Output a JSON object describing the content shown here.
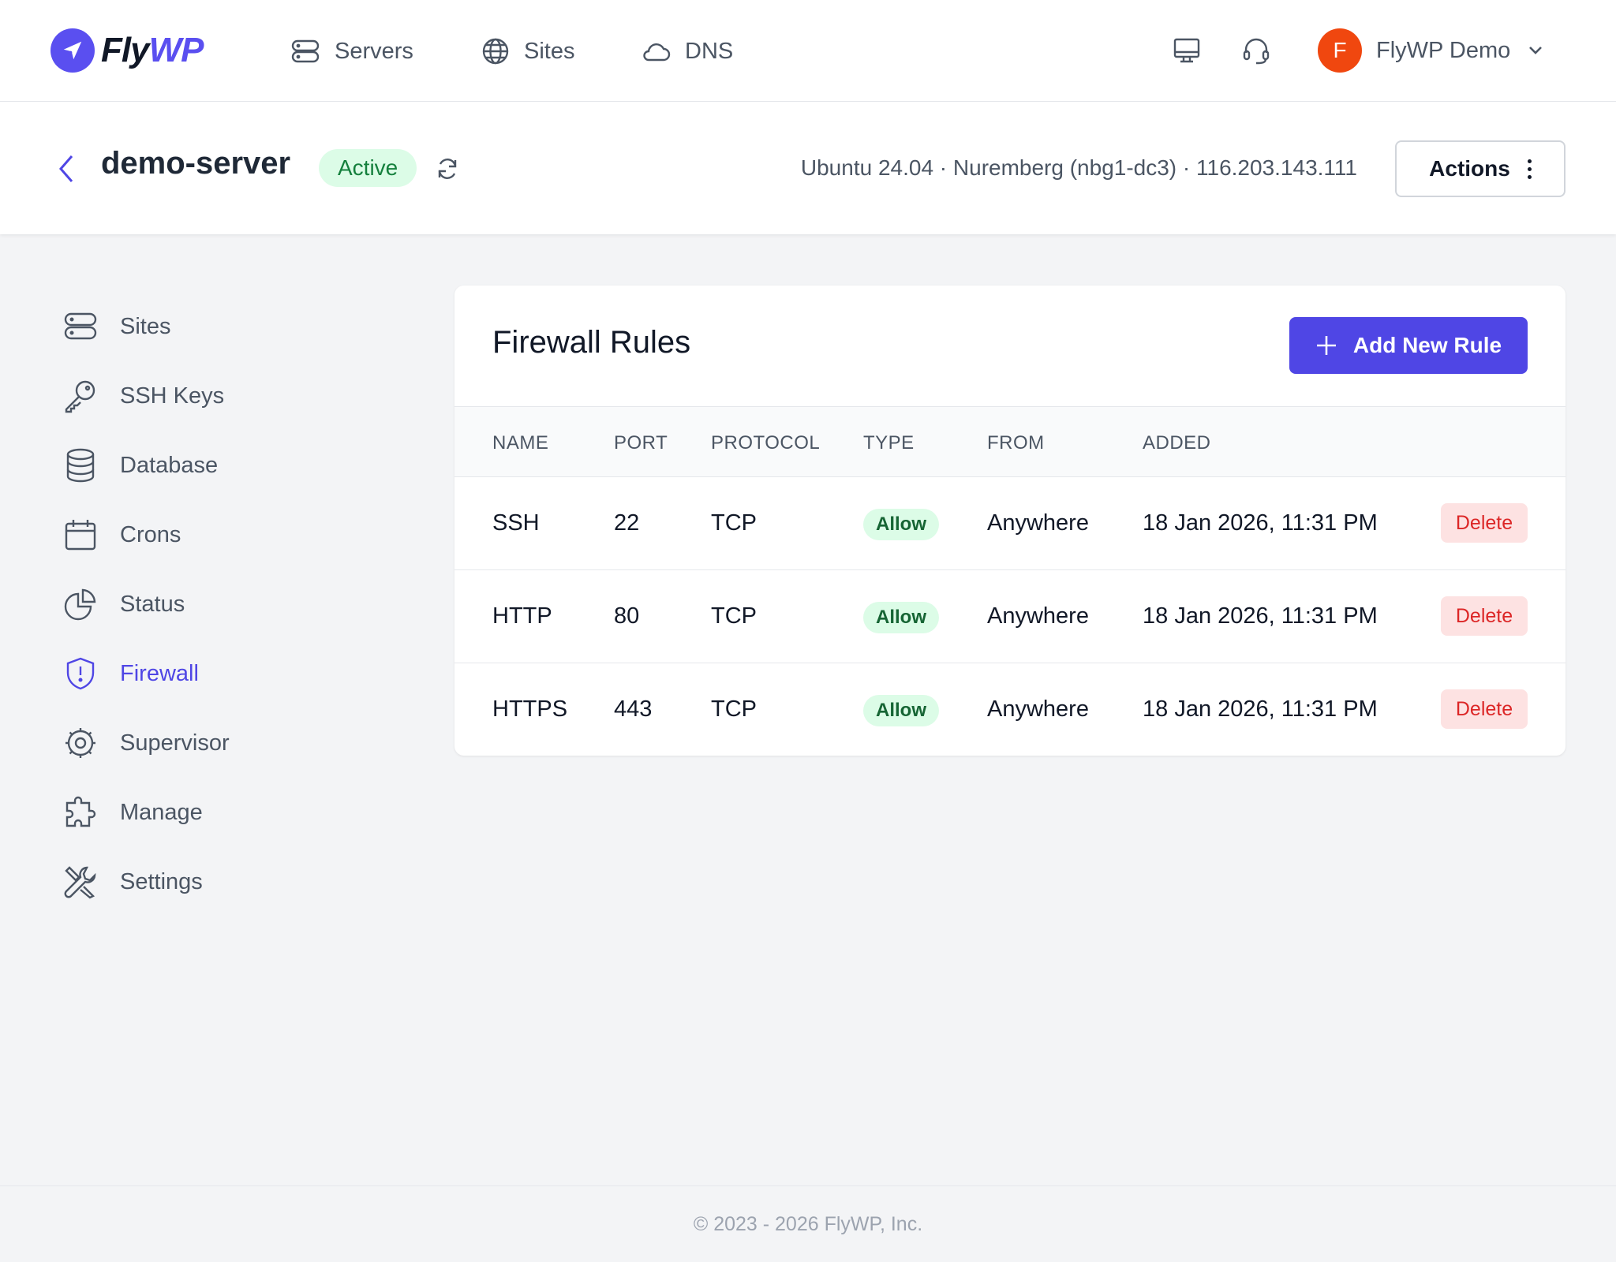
{
  "brand": {
    "fly": "Fly",
    "wp": "WP"
  },
  "topnav": {
    "items": [
      {
        "label": "Servers",
        "icon": "server-icon"
      },
      {
        "label": "Sites",
        "icon": "globe-icon"
      },
      {
        "label": "DNS",
        "icon": "cloud-icon"
      }
    ],
    "user": {
      "initial": "F",
      "name": "FlyWP Demo"
    }
  },
  "server": {
    "name": "demo-server",
    "status": "Active",
    "meta": "Ubuntu 24.04 · Nuremberg (nbg1-dc3) · 116.203.143.111",
    "actions_label": "Actions"
  },
  "sidebar": {
    "items": [
      {
        "label": "Sites",
        "icon": "server-icon"
      },
      {
        "label": "SSH Keys",
        "icon": "key-icon"
      },
      {
        "label": "Database",
        "icon": "database-icon"
      },
      {
        "label": "Crons",
        "icon": "calendar-icon"
      },
      {
        "label": "Status",
        "icon": "pie-chart-icon"
      },
      {
        "label": "Firewall",
        "icon": "shield-icon",
        "active": true
      },
      {
        "label": "Supervisor",
        "icon": "cog-icon"
      },
      {
        "label": "Manage",
        "icon": "puzzle-icon"
      },
      {
        "label": "Settings",
        "icon": "tools-icon"
      }
    ]
  },
  "firewall": {
    "title": "Firewall Rules",
    "add_label": "Add New Rule",
    "columns": [
      "NAME",
      "PORT",
      "PROTOCOL",
      "TYPE",
      "FROM",
      "ADDED"
    ],
    "rows": [
      {
        "name": "SSH",
        "port": "22",
        "protocol": "TCP",
        "type": "Allow",
        "from": "Anywhere",
        "added": "18 Jan 2026, 11:31 PM",
        "delete_label": "Delete"
      },
      {
        "name": "HTTP",
        "port": "80",
        "protocol": "TCP",
        "type": "Allow",
        "from": "Anywhere",
        "added": "18 Jan 2026, 11:31 PM",
        "delete_label": "Delete"
      },
      {
        "name": "HTTPS",
        "port": "443",
        "protocol": "TCP",
        "type": "Allow",
        "from": "Anywhere",
        "added": "18 Jan 2026, 11:31 PM",
        "delete_label": "Delete"
      }
    ]
  },
  "footer": {
    "text": "© 2023 - 2026 FlyWP, Inc."
  },
  "colors": {
    "accent": "#4f46e5",
    "brand": "#5a4ff0",
    "success_bg": "#dcfce7",
    "danger": "#dc2626",
    "avatar": "#f0470f"
  }
}
